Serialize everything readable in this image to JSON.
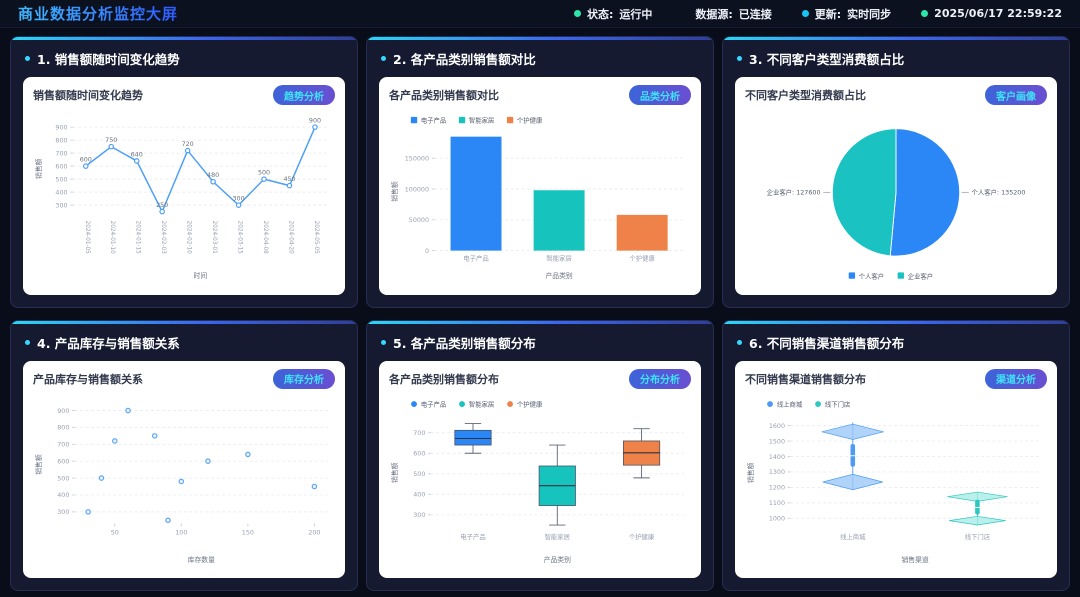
{
  "header": {
    "title": "商业数据分析监控大屏",
    "status_items": [
      {
        "label": "状态:",
        "value": "运行中",
        "dot_color": "#2ee6a8"
      },
      {
        "label": "数据源:",
        "value": "已连接",
        "dot_color": ""
      },
      {
        "label": "更新:",
        "value": "实时同步",
        "dot_color": "#19c3f5"
      },
      {
        "label": "",
        "value": "2025/06/17 22:59:22",
        "dot_color": "#2ee6a8"
      }
    ]
  },
  "panels": [
    {
      "label": "1. 销售额随时间变化趋势",
      "card_title": "销售额随时间变化趋势",
      "badge": "趋势分析"
    },
    {
      "label": "2. 各产品类别销售额对比",
      "card_title": "各产品类别销售额对比",
      "badge": "品类分析"
    },
    {
      "label": "3. 不同客户类型消费额占比",
      "card_title": "不同客户类型消费额占比",
      "badge": "客户画像"
    },
    {
      "label": "4. 产品库存与销售额关系",
      "card_title": "产品库存与销售额关系",
      "badge": "库存分析"
    },
    {
      "label": "5. 各产品类别销售额分布",
      "card_title": "各产品类别销售额分布",
      "badge": "分布分析"
    },
    {
      "label": "6. 不同销售渠道销售额分布",
      "card_title": "不同销售渠道销售额分布",
      "badge": "渠道分析"
    }
  ],
  "chart_data": [
    {
      "type": "line",
      "title": "销售额随时间变化趋势",
      "x": [
        "2024-01-05",
        "2024-01-10",
        "2024-01-15",
        "2024-02-03",
        "2024-02-10",
        "2024-03-01",
        "2024-03-15",
        "2024-04-08",
        "2024-04-20",
        "2024-05-05"
      ],
      "values": [
        600,
        750,
        640,
        250,
        720,
        480,
        300,
        500,
        450,
        900
      ],
      "xlabel": "时间",
      "ylabel": "销售额",
      "yticks": [
        300,
        400,
        500,
        600,
        700,
        800,
        900
      ],
      "ylim": [
        230,
        930
      ],
      "color": "#4b9ef6",
      "grid": true
    },
    {
      "type": "bar",
      "title": "各产品类别销售额对比",
      "categories": [
        "电子产品",
        "智能家居",
        "个护健康"
      ],
      "values": [
        185000,
        98000,
        58000
      ],
      "colors": [
        "#2b87f6",
        "#17c3bd",
        "#ee8248"
      ],
      "legend": [
        "电子产品",
        "智能家居",
        "个护健康"
      ],
      "xlabel": "产品类别",
      "ylabel": "销售额",
      "yticks": [
        0,
        50000,
        100000,
        150000
      ],
      "ylim": [
        0,
        192000
      ],
      "grid": true
    },
    {
      "type": "pie",
      "title": "不同客户类型消费额占比",
      "slices": [
        {
          "name": "个人客户",
          "value": 135200,
          "color": "#2b87f6"
        },
        {
          "name": "企业客户",
          "value": 127600,
          "color": "#1bc2c2"
        }
      ],
      "legend": [
        "个人客户",
        "企业客户"
      ],
      "legend_position": "bottom"
    },
    {
      "type": "scatter",
      "title": "产品库存与销售额关系",
      "points": [
        [
          30,
          300
        ],
        [
          40,
          500
        ],
        [
          50,
          720
        ],
        [
          60,
          900
        ],
        [
          80,
          750
        ],
        [
          90,
          250
        ],
        [
          100,
          480
        ],
        [
          120,
          600
        ],
        [
          150,
          640
        ],
        [
          200,
          450
        ]
      ],
      "xlabel": "库存数量",
      "ylabel": "销售额",
      "xticks": [
        50,
        100,
        150,
        200
      ],
      "xlim": [
        20,
        210
      ],
      "yticks": [
        300,
        400,
        500,
        600,
        700,
        800,
        900
      ],
      "ylim": [
        230,
        930
      ],
      "color": "#5fa5f2",
      "grid": true
    },
    {
      "type": "box",
      "title": "各产品类别销售额分布",
      "categories": [
        "电子产品",
        "智能家居",
        "个护健康"
      ],
      "series": [
        {
          "name": "电子产品",
          "color": "#2b87f6",
          "min": 600,
          "q1": 640,
          "median": 672,
          "q3": 712,
          "max": 745
        },
        {
          "name": "智能家居",
          "color": "#17c3bd",
          "min": 250,
          "q1": 345,
          "median": 442,
          "q3": 538,
          "max": 640
        },
        {
          "name": "个护健康",
          "color": "#ee8248",
          "min": 480,
          "q1": 542,
          "median": 602,
          "q3": 660,
          "max": 720
        }
      ],
      "xlabel": "产品类别",
      "ylabel": "销售额",
      "yticks": [
        300,
        400,
        500,
        600,
        700
      ],
      "ylim": [
        230,
        780
      ],
      "grid": true
    },
    {
      "type": "violin",
      "title": "不同销售渠道销售额分布",
      "categories": [
        "线上商城",
        "线下门店"
      ],
      "series": [
        {
          "name": "线上商城",
          "color": "#9cc8f7",
          "stroke": "#4e9cf2",
          "whisker": [
            1185,
            1620
          ],
          "box": [
            1335,
            1480
          ],
          "median": 1405,
          "lobes": [
            {
              "center": 1560,
              "half_h": 50,
              "half_w": 34
            },
            {
              "center": 1235,
              "half_h": 50,
              "half_w": 33
            }
          ]
        },
        {
          "name": "线下门店",
          "color": "#a9ece6",
          "stroke": "#2ec8c0",
          "whisker": [
            955,
            1170
          ],
          "box": [
            1025,
            1120
          ],
          "median": 1070,
          "lobes": [
            {
              "center": 1140,
              "half_h": 30,
              "half_w": 33
            },
            {
              "center": 985,
              "half_h": 28,
              "half_w": 31
            }
          ]
        }
      ],
      "xlabel": "销售渠道",
      "ylabel": "销售额",
      "yticks": [
        1000,
        1100,
        1200,
        1300,
        1400,
        1500,
        1600
      ],
      "ylim": [
        930,
        1660
      ],
      "grid": true
    }
  ]
}
